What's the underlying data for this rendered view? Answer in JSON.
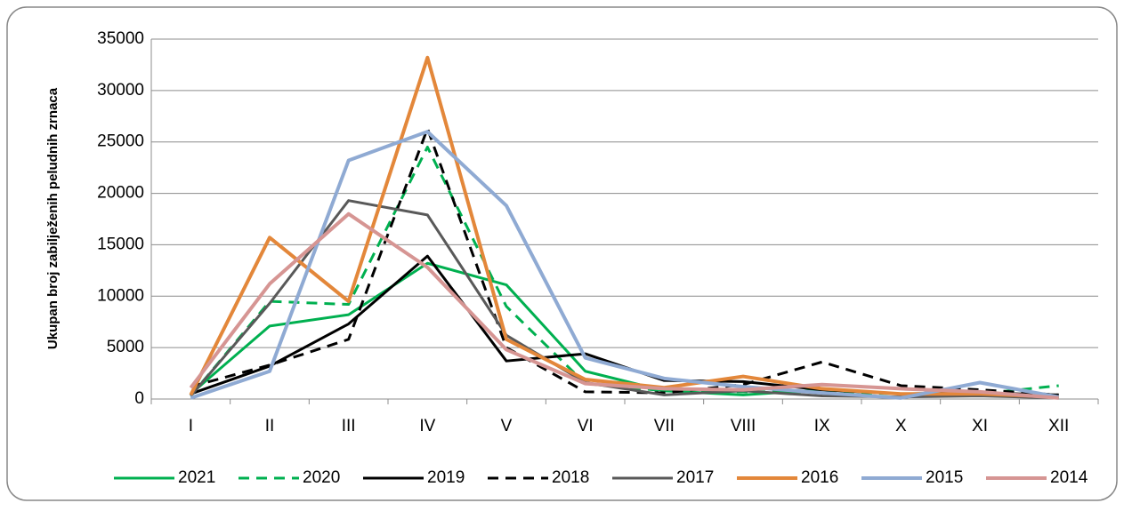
{
  "chart_data": {
    "type": "line",
    "y_label": "Ukupan broj zabilježenih peludnih zrnaca",
    "categories": [
      "I",
      "II",
      "III",
      "IV",
      "V",
      "VI",
      "VII",
      "VIII",
      "IX",
      "X",
      "XI",
      "XII"
    ],
    "ylim": [
      0,
      35000
    ],
    "yticks": [
      0,
      5000,
      10000,
      15000,
      20000,
      25000,
      30000,
      35000
    ],
    "grid": true,
    "series": [
      {
        "name": "2021",
        "color": "#00b050",
        "dash": false,
        "values": [
          500,
          7100,
          8200,
          13200,
          11100,
          2700,
          800,
          400,
          900,
          500,
          600,
          200
        ]
      },
      {
        "name": "2020",
        "color": "#00b050",
        "dash": true,
        "values": [
          300,
          9500,
          9200,
          24500,
          9000,
          1500,
          800,
          700,
          700,
          500,
          500,
          1300
        ]
      },
      {
        "name": "2019",
        "color": "#000000",
        "dash": false,
        "values": [
          500,
          3200,
          7300,
          13900,
          3700,
          4400,
          1800,
          1700,
          900,
          500,
          600,
          400
        ]
      },
      {
        "name": "2018",
        "color": "#000000",
        "dash": true,
        "values": [
          1200,
          3300,
          5800,
          26300,
          5000,
          700,
          600,
          1400,
          3600,
          1300,
          900,
          400
        ]
      },
      {
        "name": "2017",
        "color": "#595959",
        "dash": false,
        "values": [
          300,
          9300,
          19300,
          17900,
          6200,
          1600,
          400,
          800,
          300,
          200,
          300,
          100
        ]
      },
      {
        "name": "2016",
        "color": "#e3873a",
        "dash": false,
        "values": [
          400,
          15700,
          9500,
          33200,
          5800,
          1900,
          1100,
          2200,
          1000,
          500,
          500,
          200
        ]
      },
      {
        "name": "2015",
        "color": "#8faad3",
        "dash": false,
        "values": [
          100,
          2700,
          23200,
          26000,
          18800,
          4000,
          2000,
          1200,
          600,
          100,
          1600,
          200
        ]
      },
      {
        "name": "2014",
        "color": "#d69593",
        "dash": false,
        "values": [
          1100,
          11200,
          18000,
          12800,
          4800,
          1500,
          1000,
          900,
          1400,
          1000,
          700,
          100
        ]
      }
    ]
  }
}
